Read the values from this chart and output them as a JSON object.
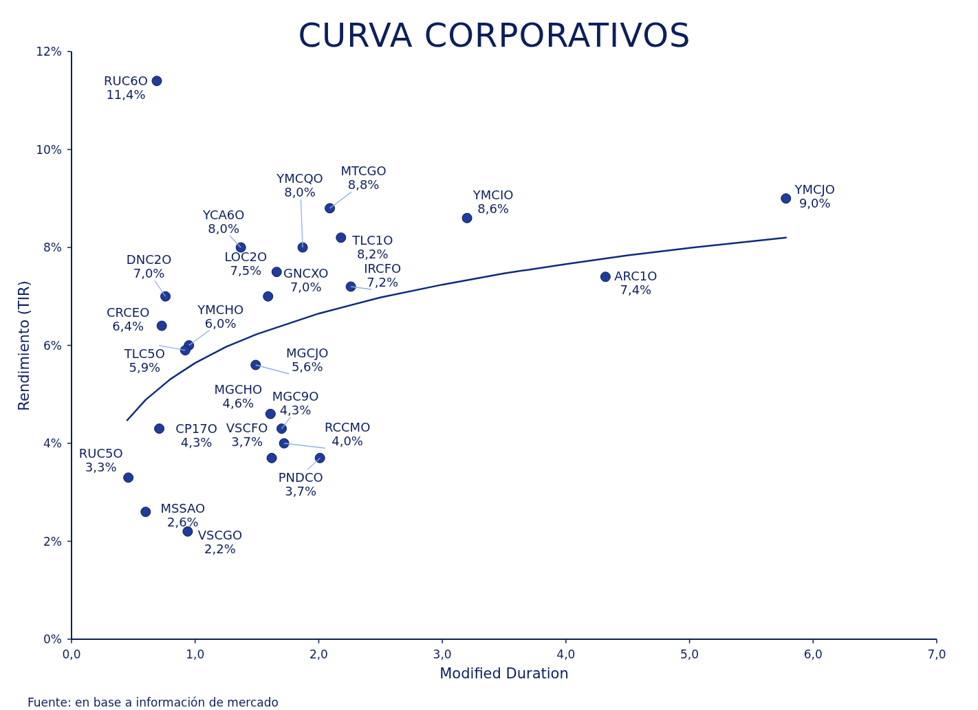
{
  "chart_data": {
    "type": "scatter",
    "title": "CURVA CORPORATIVOS",
    "xlabel": "Modified Duration",
    "ylabel": "Rendimiento (TIR)",
    "xlim": [
      0,
      7
    ],
    "xticks": [
      {
        "value": 0,
        "label": "0,0"
      },
      {
        "value": 1,
        "label": "1,0"
      },
      {
        "value": 2,
        "label": "2,0"
      },
      {
        "value": 3,
        "label": "3,0"
      },
      {
        "value": 4,
        "label": "4,0"
      },
      {
        "value": 5,
        "label": "5,0"
      },
      {
        "value": 6,
        "label": "6,0"
      },
      {
        "value": 7,
        "label": "7,0"
      }
    ],
    "ylim": [
      0,
      12
    ],
    "yticks": [
      {
        "value": 0,
        "label": "0%"
      },
      {
        "value": 2,
        "label": "2%"
      },
      {
        "value": 4,
        "label": "4%"
      },
      {
        "value": 6,
        "label": "6%"
      },
      {
        "value": 8,
        "label": "8%"
      },
      {
        "value": 10,
        "label": "10%"
      },
      {
        "value": 12,
        "label": "12%"
      }
    ],
    "grid": false,
    "series": [
      {
        "marker": "circle",
        "color": "#1f3c9a",
        "x": [
          0.69,
          1.87,
          2.09,
          3.2,
          5.78,
          1.37,
          2.18,
          1.66,
          1.59,
          2.26,
          4.32,
          0.76,
          0.73,
          0.95,
          0.92,
          1.49,
          1.61,
          1.7,
          0.71,
          1.62,
          1.72,
          2.01,
          0.46,
          0.6,
          0.94
        ],
        "values": [
          11.4,
          8.0,
          8.8,
          8.6,
          9.0,
          8.0,
          8.2,
          7.5,
          7.0,
          7.2,
          7.4,
          7.0,
          6.4,
          6.0,
          5.9,
          5.6,
          4.6,
          4.3,
          4.3,
          3.7,
          4.0,
          3.7,
          3.3,
          2.6,
          2.2
        ],
        "value_labels": [
          "11,4%",
          "8,0%",
          "8,8%",
          "8,6%",
          "9,0%",
          "8,0%",
          "8,2%",
          "7,5%",
          "7,0%",
          "7,2%",
          "7,4%",
          "7,0%",
          "6,4%",
          "6,0%",
          "5,9%",
          "5,6%",
          "4,6%",
          "4,3%",
          "4,3%",
          "3,7%",
          "4,0%",
          "3,7%",
          "3,3%",
          "2,6%",
          "2,2%"
        ]
      },
      {
        "type": "line",
        "color": "#0d2a80",
        "line_style": "solid",
        "x": [
          0.45,
          0.6,
          0.8,
          1,
          1.25,
          1.5,
          2,
          2.5,
          3,
          3.5,
          4,
          4.5,
          5,
          5.78
        ],
        "values": [
          4.47,
          4.89,
          5.31,
          5.64,
          5.97,
          6.23,
          6.65,
          6.98,
          7.24,
          7.47,
          7.66,
          7.84,
          7.99,
          8.2
        ]
      }
    ],
    "annotations": [
      {
        "text": "RUC6O",
        "x": 0.69,
        "y": 11.4
      },
      {
        "text": "YMCQO",
        "x": 1.87,
        "y": 8.0
      },
      {
        "text": "MTCGO",
        "x": 2.09,
        "y": 8.8
      },
      {
        "text": "YMCIO",
        "x": 3.2,
        "y": 8.6
      },
      {
        "text": "YMCJO",
        "x": 5.78,
        "y": 9.0
      },
      {
        "text": "YCA6O",
        "x": 1.37,
        "y": 8.0
      },
      {
        "text": "TLC1O",
        "x": 2.18,
        "y": 8.2
      },
      {
        "text": "LOC2O",
        "x": 1.66,
        "y": 7.5
      },
      {
        "text": "GNCXO",
        "x": 1.59,
        "y": 7.0
      },
      {
        "text": "IRCFO",
        "x": 2.26,
        "y": 7.2
      },
      {
        "text": "ARC1O",
        "x": 4.32,
        "y": 7.4
      },
      {
        "text": "DNC2O",
        "x": 0.76,
        "y": 7.0
      },
      {
        "text": "CRCEO",
        "x": 0.73,
        "y": 6.4
      },
      {
        "text": "YMCHO",
        "x": 0.95,
        "y": 6.0
      },
      {
        "text": "TLC5O",
        "x": 0.92,
        "y": 5.9
      },
      {
        "text": "MGCJO",
        "x": 1.49,
        "y": 5.6
      },
      {
        "text": "MGCHO",
        "x": 1.61,
        "y": 4.6
      },
      {
        "text": "MGC9O",
        "x": 1.7,
        "y": 4.3
      },
      {
        "text": "CP17O",
        "x": 0.71,
        "y": 4.3
      },
      {
        "text": "VSCFO",
        "x": 1.62,
        "y": 3.7
      },
      {
        "text": "RCCMO",
        "x": 1.72,
        "y": 4.0
      },
      {
        "text": "PNDCO",
        "x": 2.01,
        "y": 3.7
      },
      {
        "text": "RUC5O",
        "x": 0.46,
        "y": 3.3
      },
      {
        "text": "MSSAO",
        "x": 0.6,
        "y": 2.6
      },
      {
        "text": "VSCGO",
        "x": 0.94,
        "y": 2.2
      },
      "Fuente: en base a información de mercado"
    ]
  }
}
